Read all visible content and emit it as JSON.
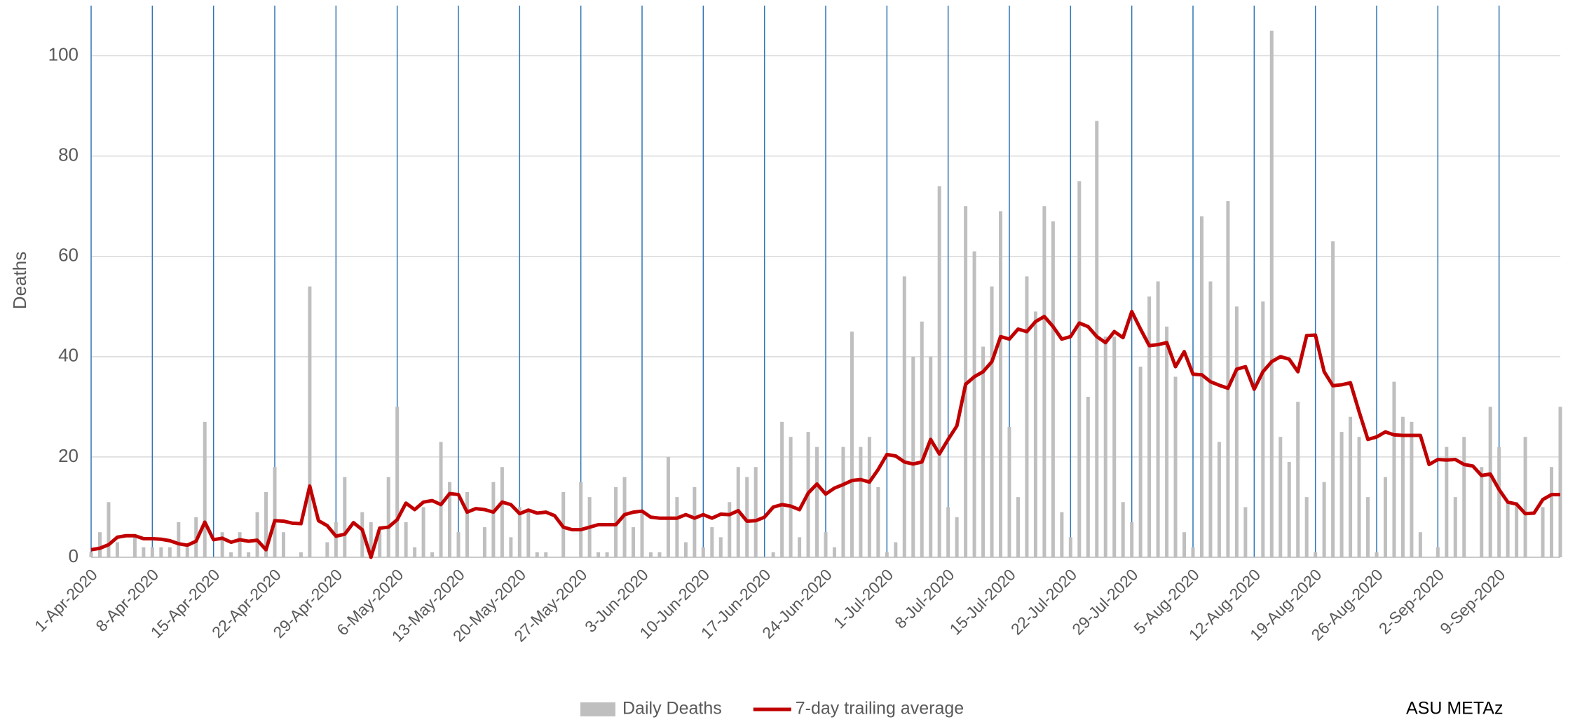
{
  "chart_data": {
    "type": "bar",
    "y_label": "Deaths",
    "source": "ASU METAz",
    "ylim": [
      0,
      110
    ],
    "yticks": [
      0,
      20,
      40,
      60,
      80,
      100
    ],
    "grid": true,
    "categories": [
      "1-Apr-2020",
      null,
      null,
      null,
      null,
      null,
      null,
      "8-Apr-2020",
      null,
      null,
      null,
      null,
      null,
      null,
      "15-Apr-2020",
      null,
      null,
      null,
      null,
      null,
      null,
      "22-Apr-2020",
      null,
      null,
      null,
      null,
      null,
      null,
      "29-Apr-2020",
      null,
      null,
      null,
      null,
      null,
      null,
      "6-May-2020",
      null,
      null,
      null,
      null,
      null,
      null,
      "13-May-2020",
      null,
      null,
      null,
      null,
      null,
      null,
      "20-May-2020",
      null,
      null,
      null,
      null,
      null,
      null,
      "27-May-2020",
      null,
      null,
      null,
      null,
      null,
      null,
      "3-Jun-2020",
      null,
      null,
      null,
      null,
      null,
      null,
      "10-Jun-2020",
      null,
      null,
      null,
      null,
      null,
      null,
      "17-Jun-2020",
      null,
      null,
      null,
      null,
      null,
      null,
      "24-Jun-2020",
      null,
      null,
      null,
      null,
      null,
      null,
      "1-Jul-2020",
      null,
      null,
      null,
      null,
      null,
      null,
      "8-Jul-2020",
      null,
      null,
      null,
      null,
      null,
      null,
      "15-Jul-2020",
      null,
      null,
      null,
      null,
      null,
      null,
      "22-Jul-2020",
      null,
      null,
      null,
      null,
      null,
      null,
      "29-Jul-2020",
      null,
      null,
      null,
      null,
      null,
      null,
      "5-Aug-2020",
      null,
      null,
      null,
      null,
      null,
      null,
      "12-Aug-2020",
      null,
      null,
      null,
      null,
      null,
      null,
      "19-Aug-2020",
      null,
      null,
      null,
      null,
      null,
      null,
      "26-Aug-2020",
      null,
      null,
      null,
      null,
      null,
      null,
      "2-Sep-2020",
      null,
      null,
      null,
      null,
      null,
      null,
      "9-Sep-2020",
      null,
      null,
      null,
      null,
      null,
      null,
      null
    ],
    "series": [
      {
        "name": "Daily Deaths",
        "type": "bar",
        "color": "#bfbfbf",
        "values": [
          1,
          5,
          11,
          3,
          0,
          4,
          2,
          2,
          2,
          2,
          7,
          2,
          8,
          27,
          0,
          5,
          1,
          5,
          1,
          9,
          13,
          18,
          5,
          0,
          1,
          54,
          0,
          3,
          7,
          16,
          0,
          9,
          7,
          5,
          16,
          30,
          7,
          2,
          10,
          1,
          23,
          15,
          5,
          13,
          0,
          6,
          15,
          18,
          4,
          10,
          9,
          1,
          1,
          0,
          13,
          0,
          15,
          12,
          1,
          1,
          14,
          16,
          6,
          9,
          1,
          1,
          20,
          12,
          3,
          14,
          2,
          6,
          4,
          11,
          18,
          16,
          18,
          0,
          1,
          27,
          24,
          4,
          25,
          22,
          5,
          2,
          22,
          45,
          22,
          24,
          14,
          1,
          3,
          56,
          40,
          47,
          40,
          74,
          10,
          8,
          70,
          61,
          42,
          54,
          69,
          26,
          12,
          56,
          49,
          70,
          67,
          9,
          4,
          75,
          32,
          87,
          44,
          44,
          11,
          7,
          38,
          52,
          55,
          46,
          36,
          5,
          2,
          68,
          55,
          23,
          71,
          50,
          10,
          0,
          51,
          105,
          24,
          19,
          31,
          12,
          1,
          15,
          63,
          25,
          28,
          24,
          12,
          1,
          16,
          35,
          28,
          27,
          5,
          0,
          2,
          22,
          12,
          24,
          0,
          18,
          30,
          22,
          11,
          11,
          24,
          0,
          10,
          18,
          30
        ]
      },
      {
        "name": "7-day trailing average",
        "type": "line",
        "color": "#c00000",
        "values": [
          1.5,
          1.8,
          2.5,
          4,
          4.3,
          4.3,
          3.7,
          3.7,
          3.6,
          3.3,
          2.7,
          2.4,
          3.2,
          7,
          3.5,
          3.8,
          3,
          3.5,
          3.2,
          3.4,
          1.5,
          7.3,
          7.2,
          6.8,
          6.7,
          14.2,
          7.3,
          6.3,
          4.2,
          4.6,
          6.9,
          5.5,
          0,
          5.8,
          6,
          7.5,
          10.8,
          9.5,
          11,
          11.3,
          10.5,
          12.7,
          12.5,
          9,
          9.7,
          9.5,
          9,
          11,
          10.5,
          8.7,
          9.4,
          8.8,
          9,
          8.3,
          6,
          5.5,
          5.5,
          6,
          6.5,
          6.5,
          6.5,
          8.5,
          9,
          9.2,
          8,
          7.8,
          7.8,
          7.8,
          8.5,
          7.8,
          8.5,
          7.8,
          8.6,
          8.5,
          9.3,
          7.2,
          7.3,
          8,
          10,
          10.5,
          10.2,
          9.5,
          12.8,
          14.6,
          12.6,
          13.8,
          14.5,
          15.3,
          15.5,
          15,
          17.5,
          20.5,
          20.2,
          19,
          18.6,
          19,
          23.5,
          20.6,
          23.5,
          26.2,
          34.5,
          36,
          37,
          39,
          44,
          43.5,
          45.5,
          45,
          47,
          48,
          46,
          43.5,
          44,
          46.7,
          46,
          44,
          42.8,
          45,
          43.8,
          49,
          45.5,
          42.2,
          42.4,
          42.8,
          38,
          41,
          36.5,
          36.4,
          35,
          34.3,
          33.7,
          37.5,
          38,
          33.5,
          37,
          39,
          40,
          39.5,
          37,
          44.2,
          44.3,
          37,
          34.2,
          34.4,
          34.8,
          29,
          23.5,
          24,
          25,
          24.4,
          24.3,
          24.3,
          24.3,
          18.5,
          19.5,
          19.4,
          19.5,
          18.5,
          18.2,
          16.3,
          16.6,
          13.5,
          11,
          10.6,
          8.7,
          8.8,
          11.5,
          12.5,
          12.5
        ]
      }
    ]
  }
}
